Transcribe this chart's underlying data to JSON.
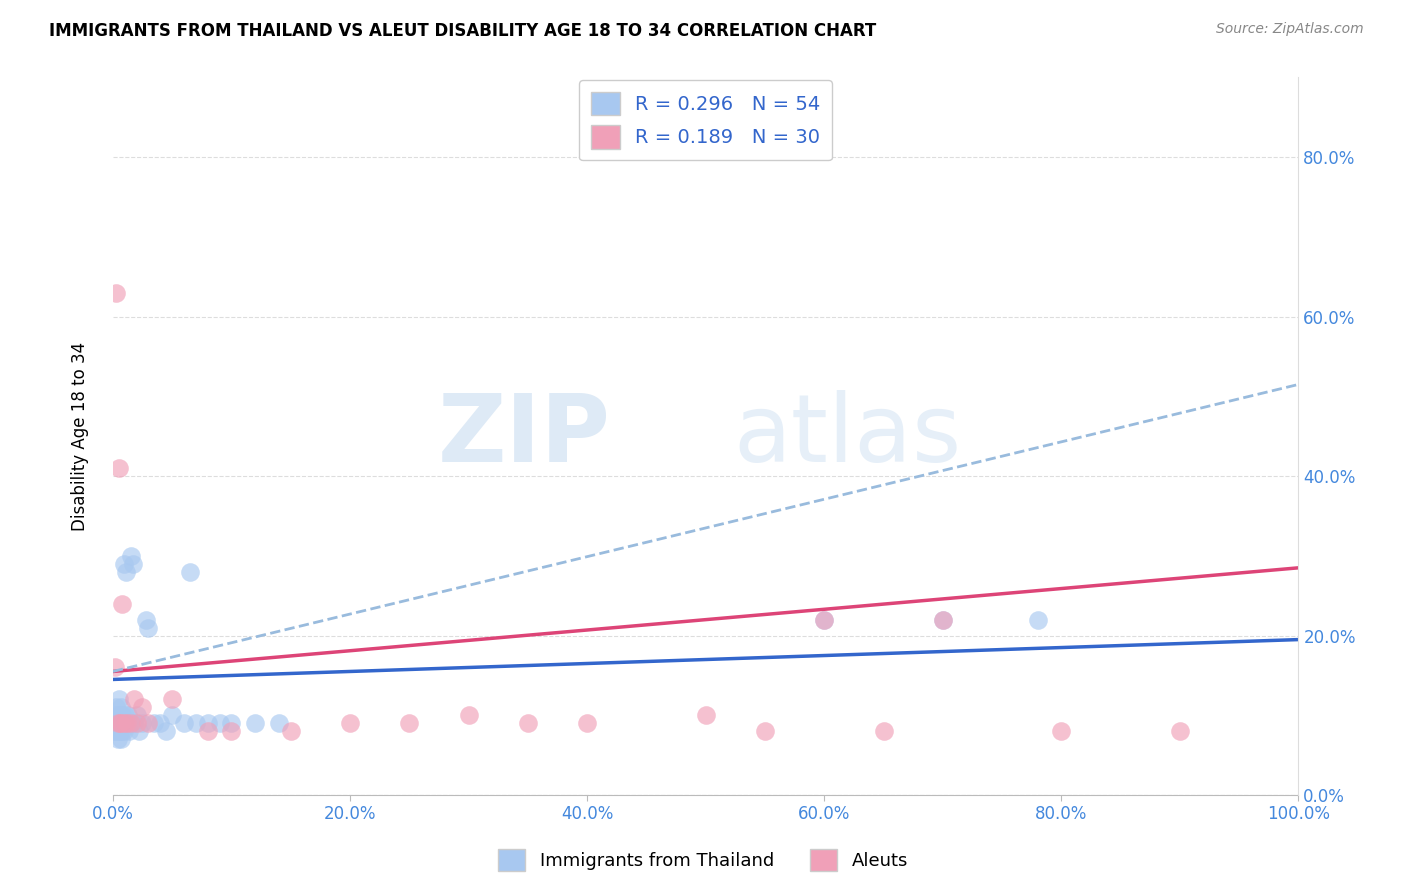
{
  "title": "IMMIGRANTS FROM THAILAND VS ALEUT DISABILITY AGE 18 TO 34 CORRELATION CHART",
  "source": "Source: ZipAtlas.com",
  "ylabel": "Disability Age 18 to 34",
  "legend_blue_label": "R = 0.296   N = 54",
  "legend_pink_label": "R = 0.189   N = 30",
  "legend_bottom_blue": "Immigrants from Thailand",
  "legend_bottom_pink": "Aleuts",
  "blue_color": "#A8C8F0",
  "pink_color": "#F0A0B8",
  "blue_line_color": "#3366CC",
  "pink_line_color": "#DD4477",
  "dashed_line_color": "#99BBDD",
  "xlim": [
    0.0,
    1.0
  ],
  "ylim": [
    0.0,
    0.9
  ],
  "xticks": [
    0.0,
    0.2,
    0.4,
    0.6,
    0.8,
    1.0
  ],
  "yticks_right": [
    0.0,
    0.2,
    0.4,
    0.6,
    0.8
  ],
  "blue_scatter_x": [
    0.001,
    0.002,
    0.002,
    0.003,
    0.003,
    0.003,
    0.004,
    0.004,
    0.004,
    0.005,
    0.005,
    0.005,
    0.006,
    0.006,
    0.006,
    0.007,
    0.007,
    0.007,
    0.008,
    0.008,
    0.008,
    0.009,
    0.009,
    0.01,
    0.01,
    0.011,
    0.011,
    0.012,
    0.013,
    0.014,
    0.015,
    0.016,
    0.017,
    0.018,
    0.02,
    0.022,
    0.025,
    0.028,
    0.03,
    0.035,
    0.04,
    0.045,
    0.05,
    0.06,
    0.065,
    0.07,
    0.08,
    0.09,
    0.1,
    0.12,
    0.14,
    0.6,
    0.7,
    0.78
  ],
  "blue_scatter_y": [
    0.08,
    0.09,
    0.1,
    0.08,
    0.09,
    0.11,
    0.07,
    0.09,
    0.1,
    0.08,
    0.09,
    0.12,
    0.08,
    0.09,
    0.1,
    0.07,
    0.09,
    0.11,
    0.08,
    0.09,
    0.1,
    0.08,
    0.29,
    0.09,
    0.1,
    0.28,
    0.09,
    0.09,
    0.1,
    0.08,
    0.3,
    0.09,
    0.29,
    0.09,
    0.1,
    0.08,
    0.09,
    0.22,
    0.21,
    0.09,
    0.09,
    0.08,
    0.1,
    0.09,
    0.28,
    0.09,
    0.09,
    0.09,
    0.09,
    0.09,
    0.09,
    0.22,
    0.22,
    0.22
  ],
  "pink_scatter_x": [
    0.002,
    0.003,
    0.004,
    0.005,
    0.006,
    0.007,
    0.008,
    0.01,
    0.012,
    0.015,
    0.018,
    0.02,
    0.025,
    0.03,
    0.05,
    0.08,
    0.1,
    0.15,
    0.2,
    0.25,
    0.3,
    0.35,
    0.4,
    0.5,
    0.55,
    0.6,
    0.65,
    0.7,
    0.8,
    0.9
  ],
  "pink_scatter_y": [
    0.16,
    0.63,
    0.09,
    0.41,
    0.09,
    0.09,
    0.24,
    0.09,
    0.09,
    0.09,
    0.12,
    0.09,
    0.11,
    0.09,
    0.12,
    0.08,
    0.08,
    0.08,
    0.09,
    0.09,
    0.1,
    0.09,
    0.09,
    0.1,
    0.08,
    0.22,
    0.08,
    0.22,
    0.08,
    0.08
  ],
  "blue_trend_y_start": 0.145,
  "blue_trend_y_end": 0.195,
  "pink_trend_y_start": 0.155,
  "pink_trend_y_end": 0.285,
  "dashed_trend_y_start": 0.155,
  "dashed_trend_y_end": 0.515,
  "scatter_size": 180,
  "scatter_alpha": 0.65
}
